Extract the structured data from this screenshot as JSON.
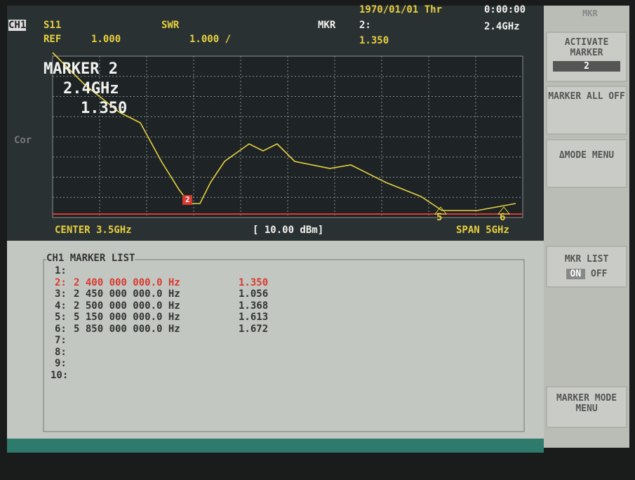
{
  "header": {
    "datetime": "1970/01/01 Thr",
    "time": "0:00:00",
    "menu_title": "MKR"
  },
  "trace_info": {
    "channel": "CH1",
    "param": "S11",
    "format": "SWR",
    "ref_label": "REF",
    "ref_value": "1.000",
    "scale": "1.000 /",
    "marker_label": "MKR",
    "marker_id": "2:",
    "marker_freq": "2.4GHz",
    "marker_value": "1.350"
  },
  "annotation": [
    "MARKER 2",
    "2.4GHz",
    "1.350"
  ],
  "side_label": "Cor",
  "marker_flags": [
    "2",
    "5",
    "6"
  ],
  "footer": {
    "center": "CENTER 3.5GHz",
    "power": "[ 10.00 dBm]",
    "span": "SPAN 5GHz"
  },
  "marker_list": {
    "title": "CH1 MARKER LIST",
    "rows": [
      [
        "1:",
        "",
        ""
      ],
      [
        "2:",
        "2 400 000 000.0 Hz",
        "1.350"
      ],
      [
        "3:",
        "2 450 000 000.0 Hz",
        "1.056"
      ],
      [
        "4:",
        "2 500 000 000.0 Hz",
        "1.368"
      ],
      [
        "5:",
        "5 150 000 000.0 Hz",
        "1.613"
      ],
      [
        "6:",
        "5 850 000 000.0 Hz",
        "1.672"
      ],
      [
        "7:",
        "",
        ""
      ],
      [
        "8:",
        "",
        ""
      ],
      [
        "9:",
        "",
        ""
      ],
      [
        "10:",
        "",
        ""
      ]
    ]
  },
  "softkeys": [
    {
      "label": "ACTIVATE MARKER",
      "value": "2"
    },
    {
      "label": "MARKER ALL OFF"
    },
    {
      "label": "ΔMODE MENU"
    },
    {
      "label": "MKR LIST",
      "on": "ON",
      "off": "OFF"
    },
    {
      "label": "MARKER MODE MENU"
    }
  ]
}
